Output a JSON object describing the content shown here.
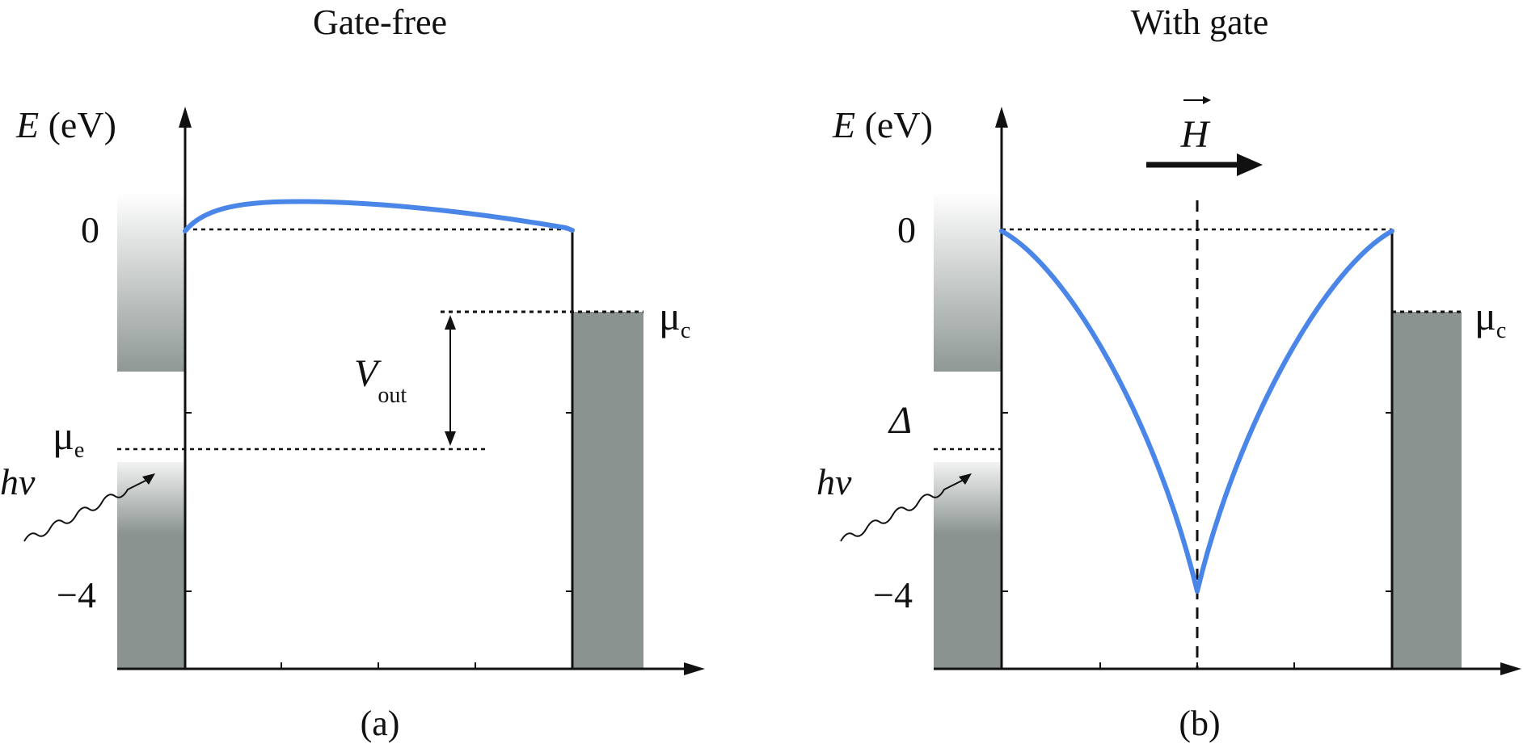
{
  "panel_a": {
    "title": "Gate-free",
    "y_axis_symbol": "E",
    "y_axis_unit": " (eV)",
    "tick_zero": "0",
    "tick_minus4": "−4",
    "mu_e_symbol": "μ",
    "mu_e_sub": "e",
    "mu_c_symbol": "μ",
    "mu_c_sub": "c",
    "vout_symbol": "V",
    "vout_sub": "out",
    "photon_label": "hv",
    "caption": "(a)"
  },
  "panel_b": {
    "title": "With gate",
    "y_axis_symbol": "E",
    "y_axis_unit": " (eV)",
    "tick_zero": "0",
    "tick_minus4": "−4",
    "delta_label": "Δ",
    "mu_c_symbol": "μ",
    "mu_c_sub": "c",
    "field_label": "H",
    "photon_label": "hv",
    "caption": "(b)"
  },
  "colors": {
    "curve": "#4a86e8",
    "fill_dark": "#8a9390",
    "axis": "#111111"
  }
}
